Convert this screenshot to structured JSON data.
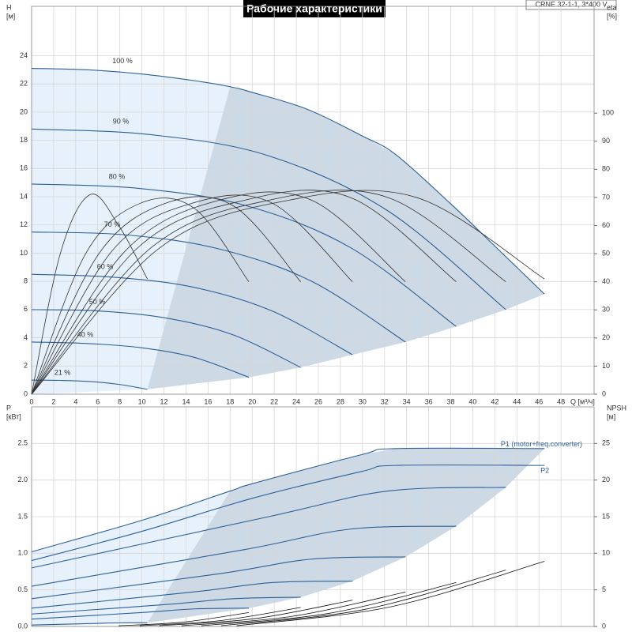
{
  "chart_data": [
    {
      "type": "line",
      "title": "Рабочие характеристики",
      "subtitle": "CRNE 32-1-1, 3*400 V",
      "ylabel": [
        "H",
        "[м]"
      ],
      "y2label": [
        "eta",
        "[%]"
      ],
      "xlabel": "Q [м³/ч]",
      "xlim": [
        0,
        51
      ],
      "ylim": [
        0,
        27.5
      ],
      "y2lim": [
        0,
        138
      ],
      "grid": true,
      "xticks": [
        0,
        2,
        4,
        6,
        8,
        10,
        12,
        14,
        16,
        18,
        20,
        22,
        24,
        26,
        28,
        30,
        32,
        34,
        36,
        38,
        40,
        42,
        44,
        46,
        48
      ],
      "yticks": [
        0,
        2,
        4,
        6,
        8,
        10,
        12,
        14,
        16,
        18,
        20,
        22,
        24
      ],
      "y2ticks": [
        0,
        10,
        20,
        30,
        40,
        50,
        60,
        70,
        80,
        90,
        100
      ],
      "series": [
        {
          "name": "100 %",
          "color": "#2d5f97",
          "x": [
            0,
            5,
            10,
            15,
            18,
            20,
            25,
            30,
            33,
            38,
            42,
            46.5
          ],
          "values": [
            23.1,
            23.0,
            22.7,
            22.2,
            21.8,
            21.4,
            20.2,
            18.3,
            17.0,
            13.5,
            10.5,
            7.1
          ]
        },
        {
          "name": "90 %",
          "color": "#2d5f97",
          "x": [
            0,
            10.8,
            21.5,
            32.3,
            43
          ],
          "values": [
            18.8,
            18.4,
            16.9,
            13.0,
            6.0
          ]
        },
        {
          "name": "80 %",
          "color": "#2d5f97",
          "x": [
            0,
            9.6,
            19.3,
            28.9,
            38.5
          ],
          "values": [
            14.9,
            14.6,
            13.4,
            10.4,
            4.8
          ]
        },
        {
          "name": "70 %",
          "color": "#2d5f97",
          "x": [
            0,
            8.5,
            17,
            25.4,
            33.9
          ],
          "values": [
            11.5,
            11.3,
            10.3,
            8.0,
            3.7
          ]
        },
        {
          "name": "60 %",
          "color": "#2d5f97",
          "x": [
            0,
            7.3,
            14.6,
            21.8,
            29.1
          ],
          "values": [
            8.5,
            8.3,
            7.6,
            5.9,
            2.8
          ]
        },
        {
          "name": "50 %",
          "color": "#2d5f97",
          "x": [
            0,
            6.1,
            12.2,
            18.3,
            24.4
          ],
          "values": [
            6.0,
            5.9,
            5.4,
            4.2,
            1.9
          ]
        },
        {
          "name": "40 %",
          "color": "#2d5f97",
          "x": [
            0,
            4.9,
            9.9,
            14.8,
            19.7
          ],
          "values": [
            3.7,
            3.6,
            3.3,
            2.6,
            1.2
          ]
        },
        {
          "name": "21 %",
          "color": "#2d5f97",
          "x": [
            0,
            2.6,
            5.3,
            7.9,
            10.5
          ],
          "values": [
            1.0,
            0.98,
            0.9,
            0.7,
            0.35
          ]
        },
        {
          "axis": "y2",
          "color": "#333333",
          "x": [
            0,
            11.6,
            23.3,
            34.9,
            46.5
          ],
          "values": [
            0,
            52,
            69,
            70,
            41
          ]
        },
        {
          "axis": "y2",
          "color": "#333333",
          "x": [
            0,
            10.8,
            21.5,
            32.3,
            43
          ],
          "values": [
            0,
            52,
            69,
            70,
            40
          ]
        },
        {
          "axis": "y2",
          "color": "#333333",
          "x": [
            0,
            9.6,
            19.3,
            28.9,
            38.5
          ],
          "values": [
            0,
            52,
            69,
            70,
            40
          ]
        },
        {
          "axis": "y2",
          "color": "#333333",
          "x": [
            0,
            8.5,
            17,
            25.4,
            33.9
          ],
          "values": [
            0,
            51,
            69,
            69,
            40
          ]
        },
        {
          "axis": "y2",
          "color": "#333333",
          "x": [
            0,
            7.3,
            14.6,
            21.8,
            29.1
          ],
          "values": [
            0,
            51,
            68,
            68,
            40
          ]
        },
        {
          "axis": "y2",
          "color": "#333333",
          "x": [
            0,
            6.1,
            12.2,
            18.3,
            24.4
          ],
          "values": [
            0,
            50,
            68,
            67,
            40
          ]
        },
        {
          "axis": "y2",
          "color": "#333333",
          "x": [
            0,
            4.9,
            9.9,
            14.8,
            19.7
          ],
          "values": [
            0,
            50,
            68,
            66,
            40
          ]
        },
        {
          "axis": "y2",
          "color": "#333333",
          "x": [
            0,
            2.6,
            5.3,
            7.9,
            10.5
          ],
          "values": [
            0,
            50,
            71,
            60,
            41
          ]
        }
      ]
    },
    {
      "type": "line",
      "ylabel": [
        "P",
        "[кВт]"
      ],
      "y2label": [
        "NPSH",
        "[м]"
      ],
      "xlim": [
        0,
        51
      ],
      "ylim": [
        0,
        3.0
      ],
      "y2lim": [
        0,
        30
      ],
      "grid": true,
      "xticks": [
        0,
        2,
        4,
        6,
        8,
        10,
        12,
        14,
        16,
        18,
        20,
        22,
        24,
        26,
        28,
        30,
        32,
        34,
        36,
        38,
        40,
        42,
        44,
        46,
        48
      ],
      "yticks": [
        {
          "value": 0,
          "label": "0.0"
        },
        0.5,
        {
          "value": 1,
          "label": "1.0"
        },
        1.5,
        {
          "value": 2,
          "label": "2.0"
        },
        2.5
      ],
      "y2ticks": [
        0,
        5,
        10,
        15,
        20,
        25
      ],
      "series": [
        {
          "name": "P1 (motor+freq.converter)",
          "color": "#2d5f97",
          "x": [
            0,
            10,
            18,
            20,
            30,
            33,
            46.5
          ],
          "values": [
            1.02,
            1.45,
            1.85,
            1.95,
            2.35,
            2.43,
            2.43
          ]
        },
        {
          "name": "P2",
          "color": "#2d5f97",
          "x": [
            0,
            10,
            20,
            30,
            33,
            46.5
          ],
          "values": [
            0.9,
            1.3,
            1.75,
            2.12,
            2.2,
            2.2
          ]
        },
        {
          "color": "#2d5f97",
          "x": [
            0,
            21.5,
            32.3,
            43
          ],
          "values": [
            0.8,
            1.5,
            1.85,
            1.9
          ]
        },
        {
          "color": "#2d5f97",
          "x": [
            0,
            19.3,
            28.9,
            38.5
          ],
          "values": [
            0.55,
            1.05,
            1.33,
            1.37
          ]
        },
        {
          "color": "#2d5f97",
          "x": [
            0,
            17,
            25.4,
            33.9
          ],
          "values": [
            0.38,
            0.72,
            0.92,
            0.95
          ]
        },
        {
          "color": "#2d5f97",
          "x": [
            0,
            14.6,
            21.8,
            29.1
          ],
          "values": [
            0.25,
            0.47,
            0.6,
            0.62
          ]
        },
        {
          "color": "#2d5f97",
          "x": [
            0,
            12.2,
            18.3,
            24.4
          ],
          "values": [
            0.17,
            0.3,
            0.38,
            0.4
          ]
        },
        {
          "color": "#2d5f97",
          "x": [
            0,
            9.9,
            14.8,
            19.7
          ],
          "values": [
            0.1,
            0.19,
            0.24,
            0.25
          ]
        },
        {
          "color": "#2d5f97",
          "x": [
            0,
            5.3,
            7.9,
            10.5
          ],
          "values": [
            0.02,
            0.04,
            0.05,
            0.05
          ]
        },
        {
          "axis": "y2",
          "color": "#111111",
          "x": [
            18.6,
            32.6,
            46.5
          ],
          "values": [
            0.1,
            2.7,
            8.9
          ]
        },
        {
          "axis": "y2",
          "color": "#111111",
          "x": [
            17.2,
            30.1,
            43
          ],
          "values": [
            0.1,
            2.3,
            7.7
          ]
        },
        {
          "axis": "y2",
          "color": "#111111",
          "x": [
            15.4,
            27,
            38.5
          ],
          "values": [
            0.1,
            1.8,
            6.0
          ]
        },
        {
          "axis": "y2",
          "color": "#111111",
          "x": [
            13.6,
            23.7,
            33.9
          ],
          "values": [
            0.1,
            1.4,
            4.7
          ]
        },
        {
          "axis": "y2",
          "color": "#111111",
          "x": [
            11.6,
            20.4,
            29.1
          ],
          "values": [
            0.1,
            1.1,
            3.6
          ]
        },
        {
          "axis": "y2",
          "color": "#111111",
          "x": [
            9.8,
            17.1,
            24.4
          ],
          "values": [
            0.1,
            0.8,
            2.6
          ]
        },
        {
          "axis": "y2",
          "color": "#111111",
          "x": [
            7.9,
            13.8,
            19.7
          ],
          "values": [
            0.1,
            0.6,
            1.9
          ]
        }
      ]
    }
  ]
}
